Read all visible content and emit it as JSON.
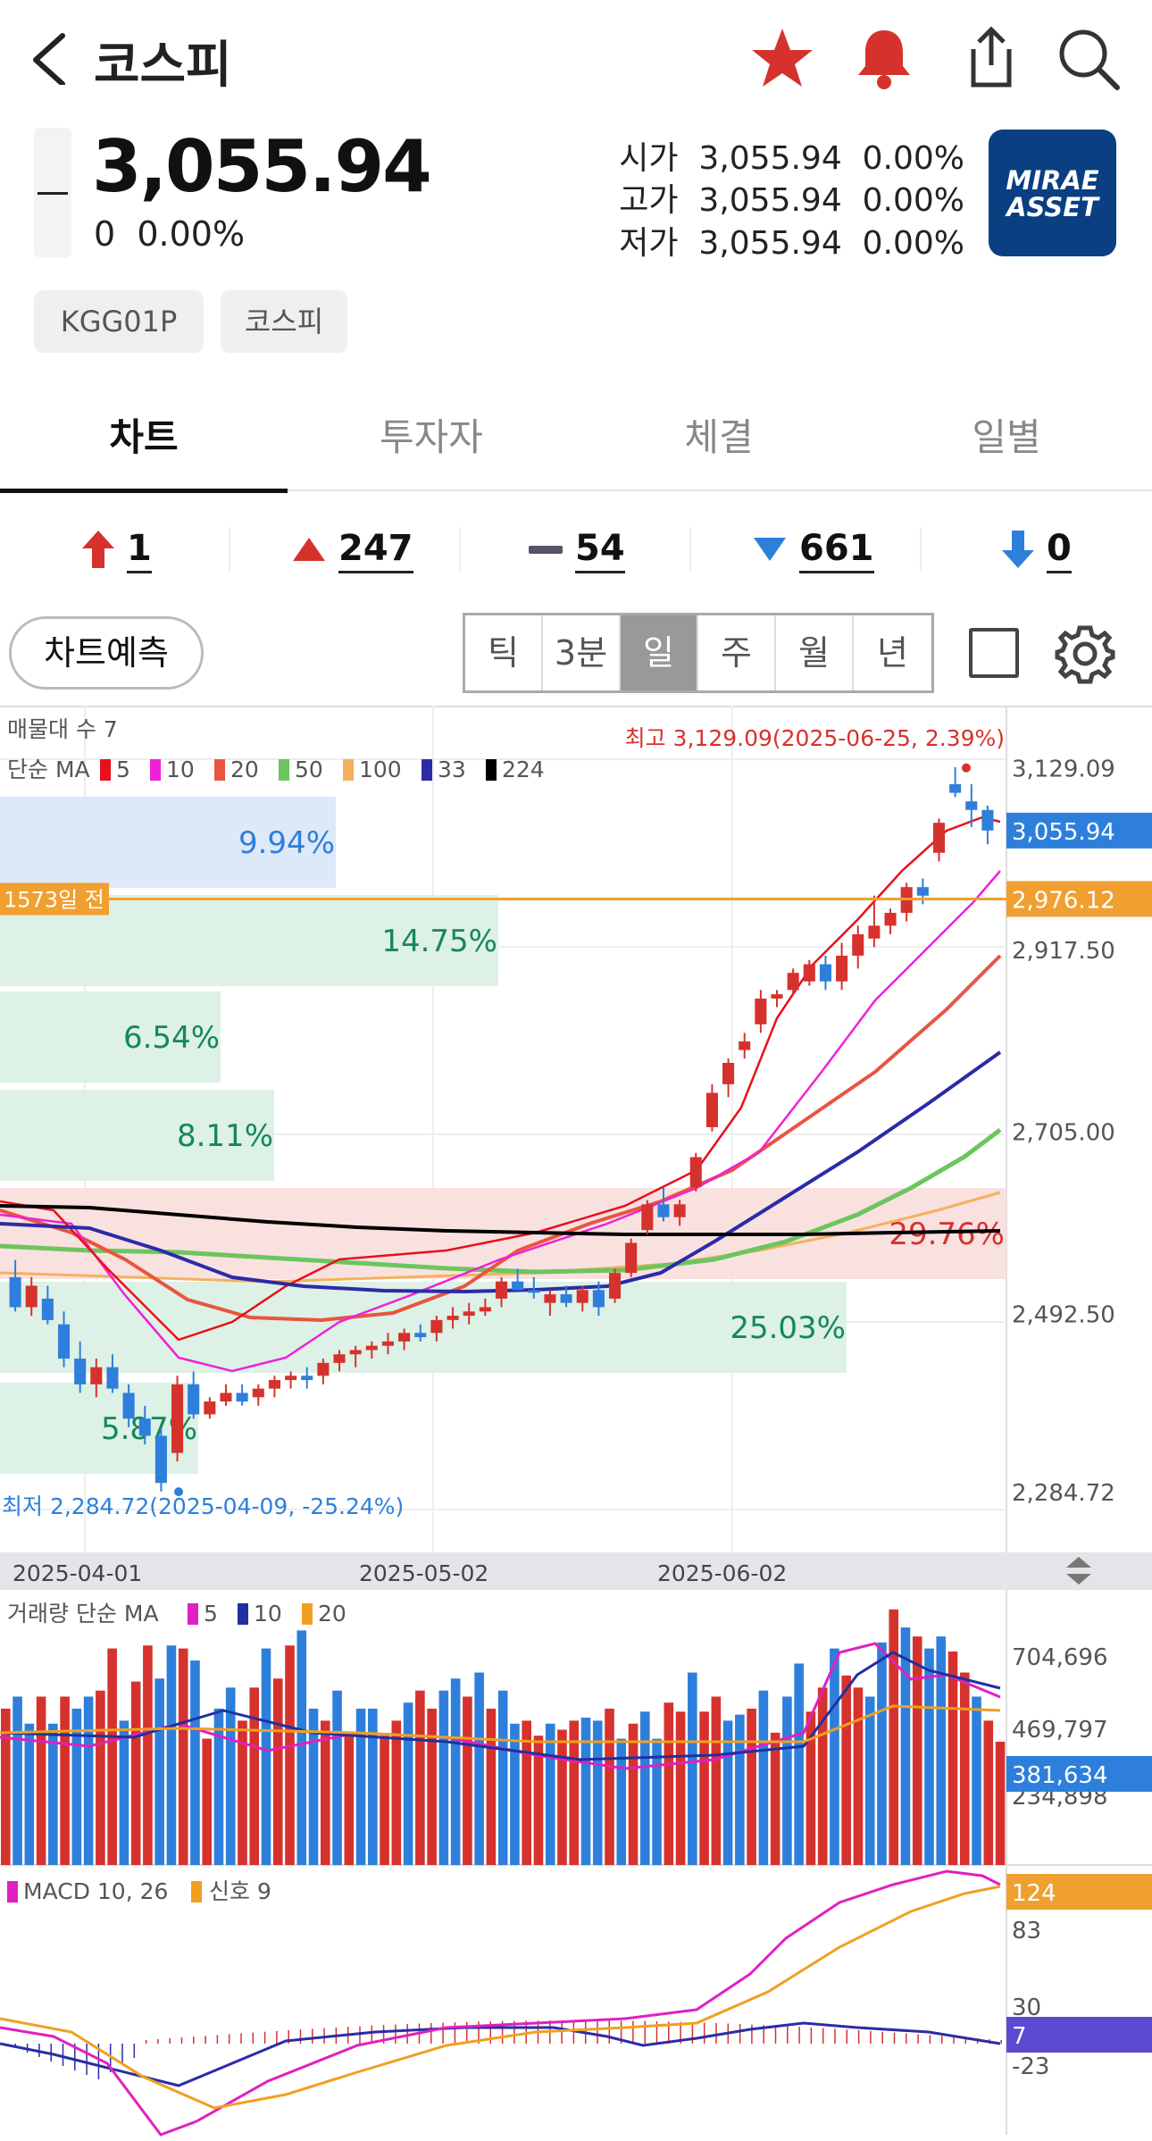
{
  "header": {
    "title": "코스피",
    "back_icon": "chevron-left-icon",
    "star_icon": "star-icon",
    "bell_icon": "bell-icon",
    "share_icon": "share-icon",
    "search_icon": "search-icon"
  },
  "quote": {
    "price": "3,055.94",
    "change": "0",
    "change_pct": "0.00%",
    "open_label": "시가",
    "open_value": "3,055.94",
    "open_pct": "0.00%",
    "high_label": "고가",
    "high_value": "3,055.94",
    "high_pct": "0.00%",
    "low_label": "저가",
    "low_value": "3,055.94",
    "low_pct": "0.00%",
    "logo_line1": "MIRAE",
    "logo_line2": "ASSET"
  },
  "tags": [
    "KGG01P",
    "코스피"
  ],
  "tabs": [
    "차트",
    "투자자",
    "체결",
    "일별"
  ],
  "stats": {
    "upper_limit": "1",
    "up": "247",
    "flat": "54",
    "down": "661",
    "lower_limit": "0"
  },
  "controls": {
    "predict": "차트예측",
    "periods": [
      "틱",
      "3분",
      "일",
      "주",
      "월",
      "년"
    ],
    "selected_period": "일"
  },
  "colors": {
    "up": "#d6322d",
    "down": "#2e7fdb",
    "accent": "#f0a030",
    "ma224": "#111111"
  },
  "chart_data": [
    {
      "type": "candlestick",
      "title": "매물대 수 7",
      "legend": "단순 MA",
      "ma_periods": [
        "5",
        "10",
        "20",
        "50",
        "100",
        "33",
        "224"
      ],
      "ma_colors": [
        "#e8101a",
        "#f020d8",
        "#e85540",
        "#6cc55e",
        "#f4b15e",
        "#2b2ba8",
        "#000000"
      ],
      "high_label": "최고 3,129.09(2025-06-25, 2.39%)",
      "low_label": "최저 2,284.72(2025-04-09, -25.24%)",
      "ref_line_label": "1573일 전",
      "ref_line_value": "2,976.12",
      "current_label": "3,055.94",
      "yticks": [
        "3,129.09",
        "2,917.50",
        "2,705.00",
        "2,492.50",
        "2,284.72"
      ],
      "xticks": [
        "2025-04-01",
        "2025-05-02",
        "2025-06-02"
      ],
      "volume_profile": [
        "9.94%",
        "14.75%",
        "6.54%",
        "8.11%",
        "29.76%",
        "25.03%",
        "5.87%"
      ],
      "ylim": [
        2264,
        3160
      ],
      "candles": [
        [
          2535,
          2555,
          2495,
          2500
        ],
        [
          2500,
          2535,
          2490,
          2525
        ],
        [
          2510,
          2525,
          2480,
          2485
        ],
        [
          2480,
          2495,
          2430,
          2440
        ],
        [
          2440,
          2460,
          2400,
          2410
        ],
        [
          2410,
          2440,
          2395,
          2430
        ],
        [
          2430,
          2445,
          2400,
          2405
        ],
        [
          2400,
          2410,
          2360,
          2370
        ],
        [
          2370,
          2385,
          2340,
          2350
        ],
        [
          2350,
          2360,
          2285,
          2295
        ],
        [
          2330,
          2420,
          2320,
          2410
        ],
        [
          2410,
          2425,
          2370,
          2375
        ],
        [
          2375,
          2395,
          2370,
          2390
        ],
        [
          2390,
          2410,
          2385,
          2400
        ],
        [
          2400,
          2410,
          2385,
          2390
        ],
        [
          2395,
          2410,
          2385,
          2405
        ],
        [
          2405,
          2420,
          2395,
          2415
        ],
        [
          2415,
          2425,
          2405,
          2420
        ],
        [
          2420,
          2430,
          2405,
          2415
        ],
        [
          2420,
          2440,
          2410,
          2435
        ],
        [
          2435,
          2450,
          2425,
          2445
        ],
        [
          2445,
          2455,
          2430,
          2450
        ],
        [
          2450,
          2460,
          2440,
          2455
        ],
        [
          2455,
          2470,
          2445,
          2460
        ],
        [
          2460,
          2475,
          2450,
          2470
        ],
        [
          2470,
          2480,
          2460,
          2465
        ],
        [
          2470,
          2490,
          2460,
          2485
        ],
        [
          2485,
          2500,
          2475,
          2490
        ],
        [
          2490,
          2505,
          2480,
          2495
        ],
        [
          2495,
          2510,
          2490,
          2500
        ],
        [
          2510,
          2535,
          2500,
          2530
        ],
        [
          2530,
          2545,
          2520,
          2520
        ],
        [
          2520,
          2535,
          2510,
          2518
        ],
        [
          2505,
          2520,
          2490,
          2515
        ],
        [
          2515,
          2525,
          2500,
          2505
        ],
        [
          2505,
          2525,
          2495,
          2520
        ],
        [
          2520,
          2530,
          2490,
          2500
        ],
        [
          2510,
          2545,
          2505,
          2540
        ],
        [
          2540,
          2580,
          2535,
          2575
        ],
        [
          2590,
          2625,
          2585,
          2620
        ],
        [
          2620,
          2640,
          2600,
          2605
        ],
        [
          2605,
          2625,
          2595,
          2620
        ],
        [
          2640,
          2680,
          2635,
          2675
        ],
        [
          2710,
          2760,
          2705,
          2750
        ],
        [
          2760,
          2790,
          2745,
          2785
        ],
        [
          2800,
          2820,
          2790,
          2810
        ],
        [
          2830,
          2870,
          2820,
          2860
        ],
        [
          2860,
          2870,
          2850,
          2865
        ],
        [
          2870,
          2895,
          2865,
          2890
        ],
        [
          2880,
          2905,
          2875,
          2900
        ],
        [
          2900,
          2910,
          2870,
          2880
        ],
        [
          2880,
          2925,
          2870,
          2910
        ],
        [
          2910,
          2945,
          2895,
          2935
        ],
        [
          2930,
          2980,
          2920,
          2945
        ],
        [
          2945,
          2965,
          2935,
          2960
        ],
        [
          2960,
          2995,
          2950,
          2990
        ],
        [
          2990,
          3000,
          2970,
          2980
        ],
        [
          3030,
          3070,
          3020,
          3065
        ],
        [
          3110,
          3130,
          3095,
          3100
        ],
        [
          3090,
          3110,
          3060,
          3080
        ],
        [
          3080,
          3085,
          3040,
          3056
        ]
      ]
    },
    {
      "type": "bar",
      "title": "거래량",
      "legend": "단순 MA",
      "ma_periods": [
        "5",
        "10",
        "20"
      ],
      "ma_colors": [
        "#e020c0",
        "#2030a0",
        "#f0a020"
      ],
      "yticks": [
        "704,696",
        "469,797",
        "234,898"
      ],
      "current_label": "381,634",
      "ylim": [
        0,
        900000
      ],
      "values": [
        520,
        560,
        470,
        560,
        470,
        560,
        520,
        560,
        580,
        720,
        480,
        610,
        730,
        620,
        730,
        720,
        680,
        420,
        520,
        590,
        480,
        590,
        720,
        620,
        730,
        780,
        520,
        480,
        580,
        430,
        520,
        520,
        430,
        480,
        540,
        580,
        520,
        580,
        620,
        560,
        640,
        520,
        580,
        470,
        480,
        430,
        470,
        450,
        480,
        490,
        480,
        520,
        420,
        470,
        510,
        420,
        540,
        510,
        640,
        510,
        560,
        480,
        500,
        520,
        580,
        440,
        560,
        670,
        510,
        590,
        720,
        630,
        590,
        560,
        740,
        850,
        790,
        760,
        720,
        760,
        710,
        640,
        560,
        480,
        410
      ],
      "colors": "alternating"
    },
    {
      "type": "line",
      "title": "MACD 10, 26",
      "signal_label": "신호 9",
      "series": [
        {
          "name": "MACD"
        },
        {
          "name": "신호"
        }
      ],
      "yticks": [
        "83",
        "30",
        "-23"
      ],
      "macd_value": "124",
      "signal_value": "7"
    }
  ]
}
